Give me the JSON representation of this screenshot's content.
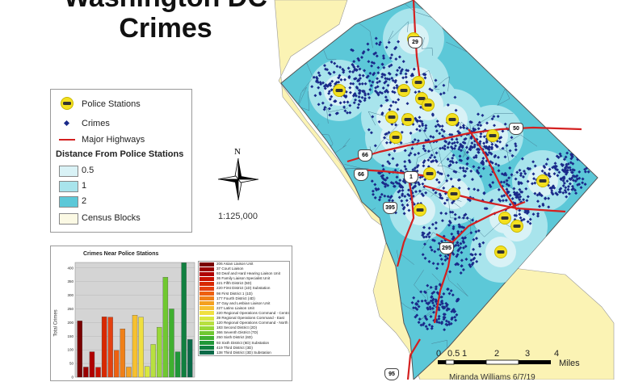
{
  "title_line1": "Washington DC",
  "title_line2": "Crimes",
  "legend": {
    "police_stations": "Police Stations",
    "crimes": "Crimes",
    "major_highways": "Major Highways",
    "distance_heading": "Distance From Police Stations",
    "d05": "0.5",
    "d1": "1",
    "d2": "2",
    "census_blocks": "Census Blocks"
  },
  "north_label": "N",
  "scale_ratio": "1:125,000",
  "highways": [
    "29",
    "50",
    "66",
    "66",
    "1",
    "395",
    "295",
    "95"
  ],
  "chart": {
    "title": "Crimes Near Police Stations",
    "ylabel": "Total Crimes",
    "ticks": [
      "400",
      "350",
      "300",
      "250",
      "200",
      "150",
      "100",
      "50",
      "0"
    ],
    "legend_items": [
      "206 Asian Liaison Unit",
      "37 Court Liaison",
      "93 Deaf and Hard Hearing Liaison Unit",
      "36 Family Liaison Specialist Unit",
      "221 Fifth District (5D)",
      "220 First District (1D) Substation",
      "98 First District 1 (1D)",
      "177 Fourth District (4D)",
      "37 Gay and Lesbian Liaison Unit",
      "227 Latino Liaison Unit",
      "220 Regional Operations Command - Central",
      "39 Regional Operations Command - East",
      "120 Regional Operations Command - North",
      "183 Second District (2D)",
      "366 Seventh District (7D)",
      "250 Sixth District (6D)",
      "93 Sixth District (6D) Substation",
      "419 Third District (3D)",
      "138 Third District (3D) Substation"
    ],
    "colors": [
      "#7a0000",
      "#9a0000",
      "#b00000",
      "#c81000",
      "#d82800",
      "#e44010",
      "#ee6010",
      "#f08018",
      "#f4a020",
      "#f6c030",
      "#f0e040",
      "#d8e840",
      "#b8e040",
      "#98d838",
      "#70c830",
      "#40b030",
      "#209838",
      "#108040",
      "#0a6a48"
    ]
  },
  "chart_data": {
    "type": "bar",
    "title": "Crimes Near Police Stations",
    "ylabel": "Total Crimes",
    "ylim": [
      0,
      420
    ],
    "categories": [
      "Asian Liaison Unit",
      "Court Liaison",
      "Deaf and Hard Hearing Liaison Unit",
      "Family Liaison Specialist Unit",
      "Fifth District (5D)",
      "First District (1D) Substation",
      "First District 1 (1D)",
      "Fourth District (4D)",
      "Gay and Lesbian Liaison Unit",
      "Latino Liaison Unit",
      "Regional Operations Command - Central",
      "Regional Operations Command - East",
      "Regional Operations Command - North",
      "Second District (2D)",
      "Seventh District (7D)",
      "Sixth District (6D)",
      "Sixth District (6D) Substation",
      "Third District (3D)",
      "Third District (3D) Substation"
    ],
    "values": [
      206,
      37,
      93,
      36,
      221,
      220,
      98,
      177,
      37,
      227,
      220,
      39,
      120,
      183,
      366,
      250,
      93,
      419,
      138
    ]
  },
  "scalebar": {
    "labels": [
      "0",
      "0.5",
      "1",
      "2",
      "3",
      "4"
    ],
    "unit": "Miles"
  },
  "author": "Miranda Williams 6/7/19",
  "colors": {
    "dc_fill": "#5cc8d8",
    "zone_05": "#d9f2f6",
    "zone_1": "#a8e4ec",
    "outside": "#fbf3b4",
    "highway": "#d42020",
    "crime_dot": "#1a2a8a",
    "station": "#f4e020"
  }
}
